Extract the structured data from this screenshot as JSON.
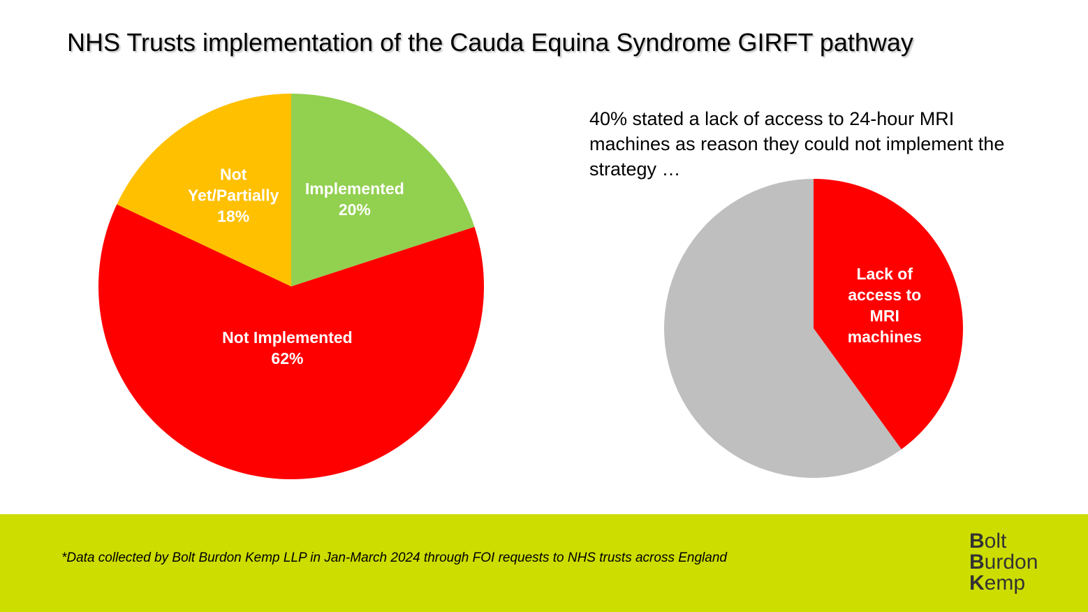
{
  "title": "NHS Trusts implementation of the Cauda Equina Syndrome GIRFT pathway",
  "annotation": "40% stated a lack of access to 24-hour MRI machines as reason they could not implement the strategy …",
  "footnote": "*Data collected by Bolt Burdon Kemp LLP in Jan-March 2024 through FOI requests to NHS trusts across England",
  "logo": {
    "lines": [
      {
        "initial": "B",
        "rest": "olt"
      },
      {
        "initial": "B",
        "rest": "urdon"
      },
      {
        "initial": "K",
        "rest": "emp"
      }
    ]
  },
  "colors": {
    "footer": "#cddd00",
    "implemented": "#92d050",
    "not_implemented": "#ff0000",
    "partial": "#ffc000",
    "grey": "#bfbfbf"
  },
  "chart_data": [
    {
      "type": "pie",
      "start_angle_deg": 0,
      "direction": "clockwise",
      "slices": [
        {
          "label_lines": [
            "Implemented",
            "20%"
          ],
          "value": 20,
          "color": "#92d050"
        },
        {
          "label_lines": [
            "Not Implemented",
            "62%"
          ],
          "value": 62,
          "color": "#ff0000"
        },
        {
          "label_lines": [
            "Not",
            "Yet/Partially",
            "18%"
          ],
          "value": 18,
          "color": "#ffc000"
        }
      ]
    },
    {
      "type": "pie",
      "start_angle_deg": 0,
      "direction": "clockwise",
      "slices": [
        {
          "label_lines": [
            "Lack of",
            "access to",
            "MRI",
            "machines"
          ],
          "value": 40,
          "color": "#ff0000"
        },
        {
          "label_lines": [],
          "value": 60,
          "color": "#bfbfbf"
        }
      ]
    }
  ]
}
